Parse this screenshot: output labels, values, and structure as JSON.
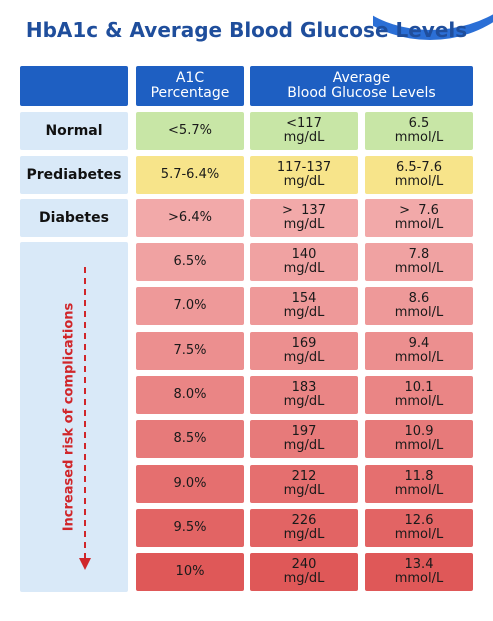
{
  "title": "HbA1c & Average Blood Glucose Levels",
  "headers": {
    "a1c_line1": "A1C",
    "a1c_line2": "Percentage",
    "avg_line1": "Average",
    "avg_line2": "Blood Glucose Levels"
  },
  "side_label": "Increased risk of complications",
  "colors": {
    "header": "#1e5fc2",
    "label_bg": "#d9e9f8",
    "normal": "#c8e6a6",
    "prediabetes": "#f7e48a",
    "arrow": "#d0262a"
  },
  "rows": [
    {
      "label": "Normal",
      "a1c": "<5.7%",
      "mgdl_1": "<117",
      "mgdl_2": "mg/dL",
      "mmol_1": "6.5",
      "mmol_2": "mmol/L"
    },
    {
      "label": "Prediabetes",
      "a1c": "5.7-6.4%",
      "mgdl_1": "117-137",
      "mgdl_2": "mg/dL",
      "mmol_1": "6.5-7.6",
      "mmol_2": "mmol/L"
    },
    {
      "label": "Diabetes",
      "a1c": ">6.4%",
      "mgdl_1": ">  137",
      "mgdl_2": "mg/dL",
      "mmol_1": ">  7.6",
      "mmol_2": "mmol/L"
    },
    {
      "label": "",
      "a1c": "6.5%",
      "mgdl_1": "140",
      "mgdl_2": "mg/dL",
      "mmol_1": "7.8",
      "mmol_2": "mmol/L"
    },
    {
      "label": "",
      "a1c": "7.0%",
      "mgdl_1": "154",
      "mgdl_2": "mg/dL",
      "mmol_1": "8.6",
      "mmol_2": "mmol/L"
    },
    {
      "label": "",
      "a1c": "7.5%",
      "mgdl_1": "169",
      "mgdl_2": "mg/dL",
      "mmol_1": "9.4",
      "mmol_2": "mmol/L"
    },
    {
      "label": "",
      "a1c": "8.0%",
      "mgdl_1": "183",
      "mgdl_2": "mg/dL",
      "mmol_1": "10.1",
      "mmol_2": "mmol/L"
    },
    {
      "label": "",
      "a1c": "8.5%",
      "mgdl_1": "197",
      "mgdl_2": "mg/dL",
      "mmol_1": "10.9",
      "mmol_2": "mmol/L"
    },
    {
      "label": "",
      "a1c": "9.0%",
      "mgdl_1": "212",
      "mgdl_2": "mg/dL",
      "mmol_1": "11.8",
      "mmol_2": "mmol/L"
    },
    {
      "label": "",
      "a1c": "9.5%",
      "mgdl_1": "226",
      "mgdl_2": "mg/dL",
      "mmol_1": "12.6",
      "mmol_2": "mmol/L"
    },
    {
      "label": "",
      "a1c": "10%",
      "mgdl_1": "240",
      "mgdl_2": "mg/dL",
      "mmol_1": "13.4",
      "mmol_2": "mmol/L"
    }
  ]
}
